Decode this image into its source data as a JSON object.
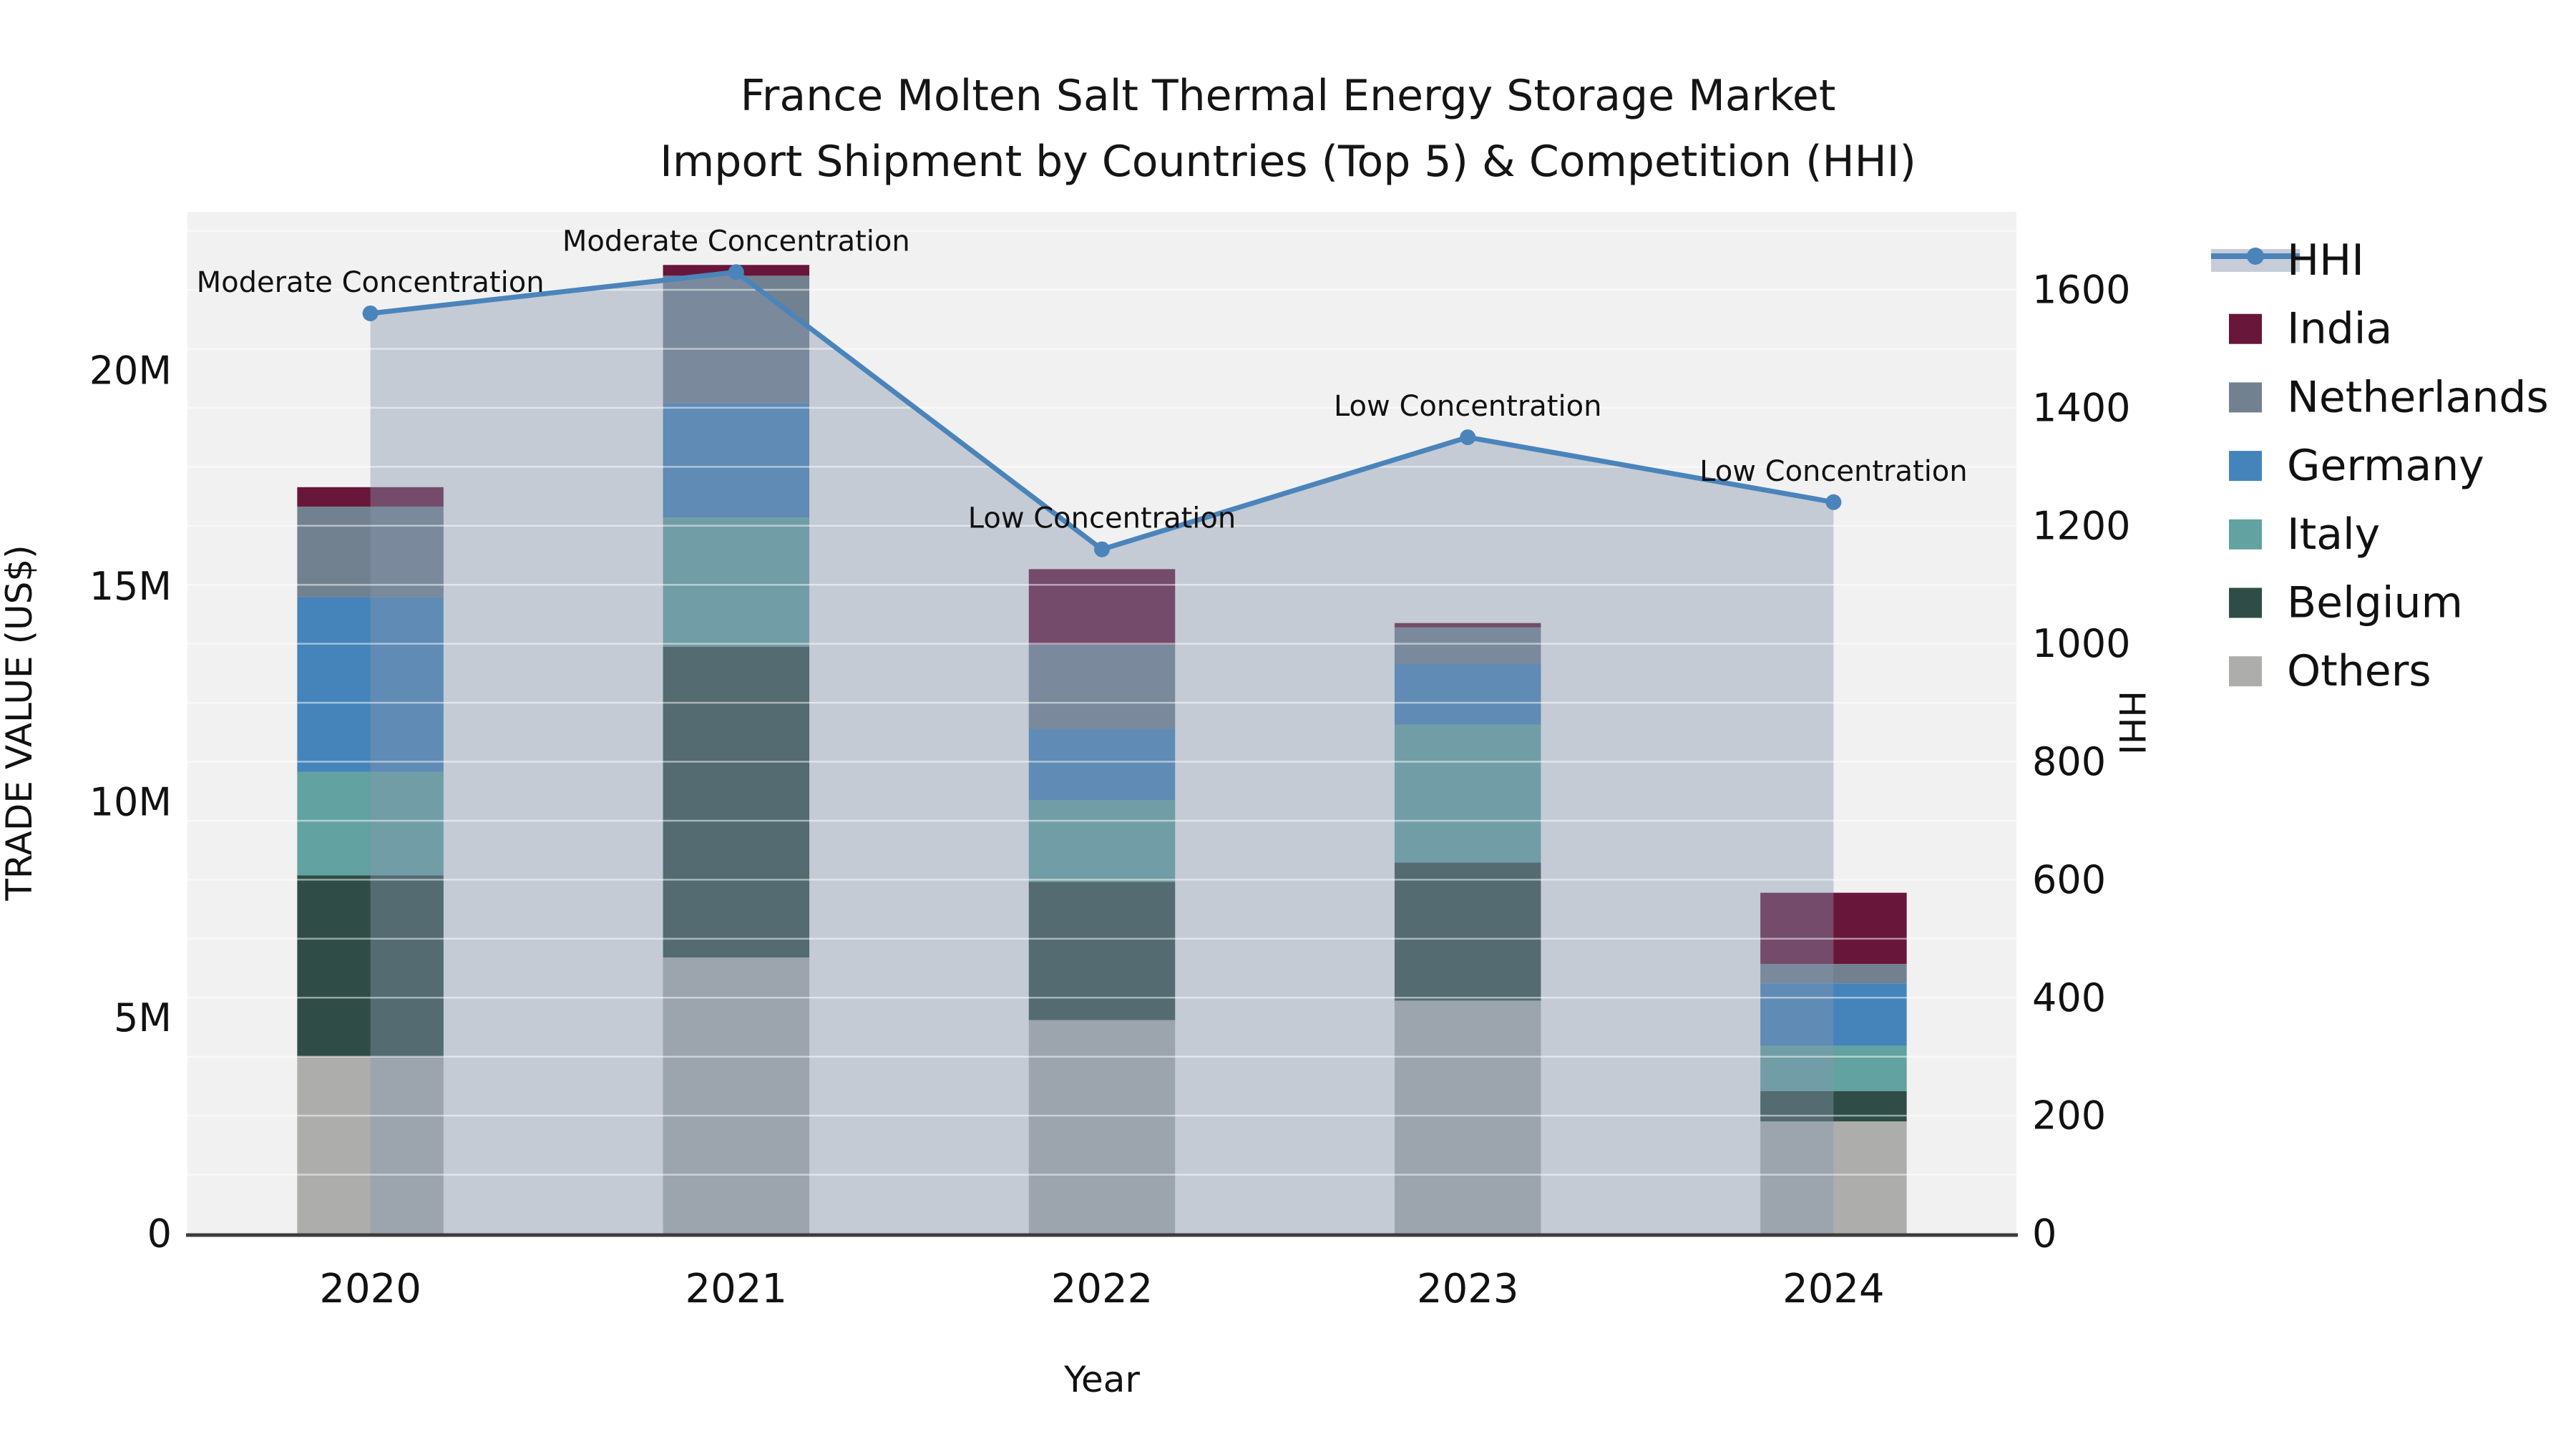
{
  "title": {
    "line1": "France Molten Salt Thermal Energy Storage Market",
    "line2": "Import Shipment by Countries (Top 5) & Competition (HHI)"
  },
  "chart_data": {
    "type": "combo: stacked bar (trade value) + line with markers (HHI) + translucent area fill under line",
    "title": "France Molten Salt Thermal Energy Storage Market — Import Shipment by Countries (Top 5) & Competition (HHI)",
    "categories": [
      "2020",
      "2021",
      "2022",
      "2023",
      "2024"
    ],
    "xlabel": "Year",
    "ylabel_left": "TRADE VALUE (US$)",
    "ylabel_right": "HHI",
    "y_left_ticks": [
      "0",
      "5M",
      "10M",
      "15M",
      "20M"
    ],
    "y_left_tick_values": [
      0,
      5,
      10,
      15,
      20
    ],
    "y_left_unit": "million US$",
    "ylim_left_millions": [
      0,
      23.7
    ],
    "y_right_ticks": [
      0,
      200,
      400,
      600,
      800,
      1000,
      1200,
      1400,
      1600
    ],
    "ylim_right": [
      0,
      1732
    ],
    "grid": "horizontal gridlines every 100 HHI units, white on light-gray plot background",
    "legend_position": "outside right",
    "bar_width_fraction": 0.4,
    "series": [
      {
        "name": "Others",
        "color": "#adaeac",
        "values": [
          4.1,
          6.4,
          4.95,
          5.4,
          2.6
        ]
      },
      {
        "name": "Belgium",
        "color": "#2f4c46",
        "values": [
          4.2,
          7.2,
          3.2,
          3.2,
          0.7
        ]
      },
      {
        "name": "Italy",
        "color": "#62a2a0",
        "values": [
          2.4,
          3.0,
          1.9,
          3.2,
          1.05
        ]
      },
      {
        "name": "Germany",
        "color": "#4484ba",
        "values": [
          4.05,
          2.65,
          1.65,
          1.4,
          1.45
        ]
      },
      {
        "name": "Netherlands",
        "color": "#72818f",
        "values": [
          2.1,
          2.95,
          1.95,
          0.85,
          0.45
        ]
      },
      {
        "name": "India",
        "color": "#68163a",
        "values": [
          0.45,
          0.25,
          1.75,
          0.1,
          1.65
        ]
      }
    ],
    "stack_order": "bottom to top: Others, Belgium, Italy, Germany, Netherlands, India",
    "bar_totals_millions": [
      17.3,
      22.45,
      15.4,
      14.15,
      7.9
    ],
    "line_series": {
      "name": "HHI",
      "color": "#4b84bb",
      "area_fill": "rgba(134,150,174,0.42)",
      "values": [
        1560,
        1630,
        1160,
        1350,
        1240
      ]
    },
    "annotations": [
      {
        "category": "2020",
        "text": "Moderate Concentration"
      },
      {
        "category": "2021",
        "text": "Moderate Concentration"
      },
      {
        "category": "2022",
        "text": "Low Concentration"
      },
      {
        "category": "2023",
        "text": "Low Concentration"
      },
      {
        "category": "2024",
        "text": "Low Concentration"
      }
    ],
    "legend_items": [
      {
        "label": "HHI",
        "type": "line",
        "color": "#4b84bb",
        "band": "#c7cdd8"
      },
      {
        "label": "India",
        "type": "swatch",
        "color": "#68163a"
      },
      {
        "label": "Netherlands",
        "type": "swatch",
        "color": "#72818f"
      },
      {
        "label": "Germany",
        "type": "swatch",
        "color": "#4484ba"
      },
      {
        "label": "Italy",
        "type": "swatch",
        "color": "#62a2a0"
      },
      {
        "label": "Belgium",
        "type": "swatch",
        "color": "#2f4c46"
      },
      {
        "label": "Others",
        "type": "swatch",
        "color": "#adaeac"
      }
    ],
    "colors": {
      "plot_bg": "#f1f1f1",
      "grid": "rgba(255,255,255,0.5)",
      "spine": "#3d3d3d",
      "text": "#111111",
      "figure_bg": "#ffffff"
    }
  }
}
